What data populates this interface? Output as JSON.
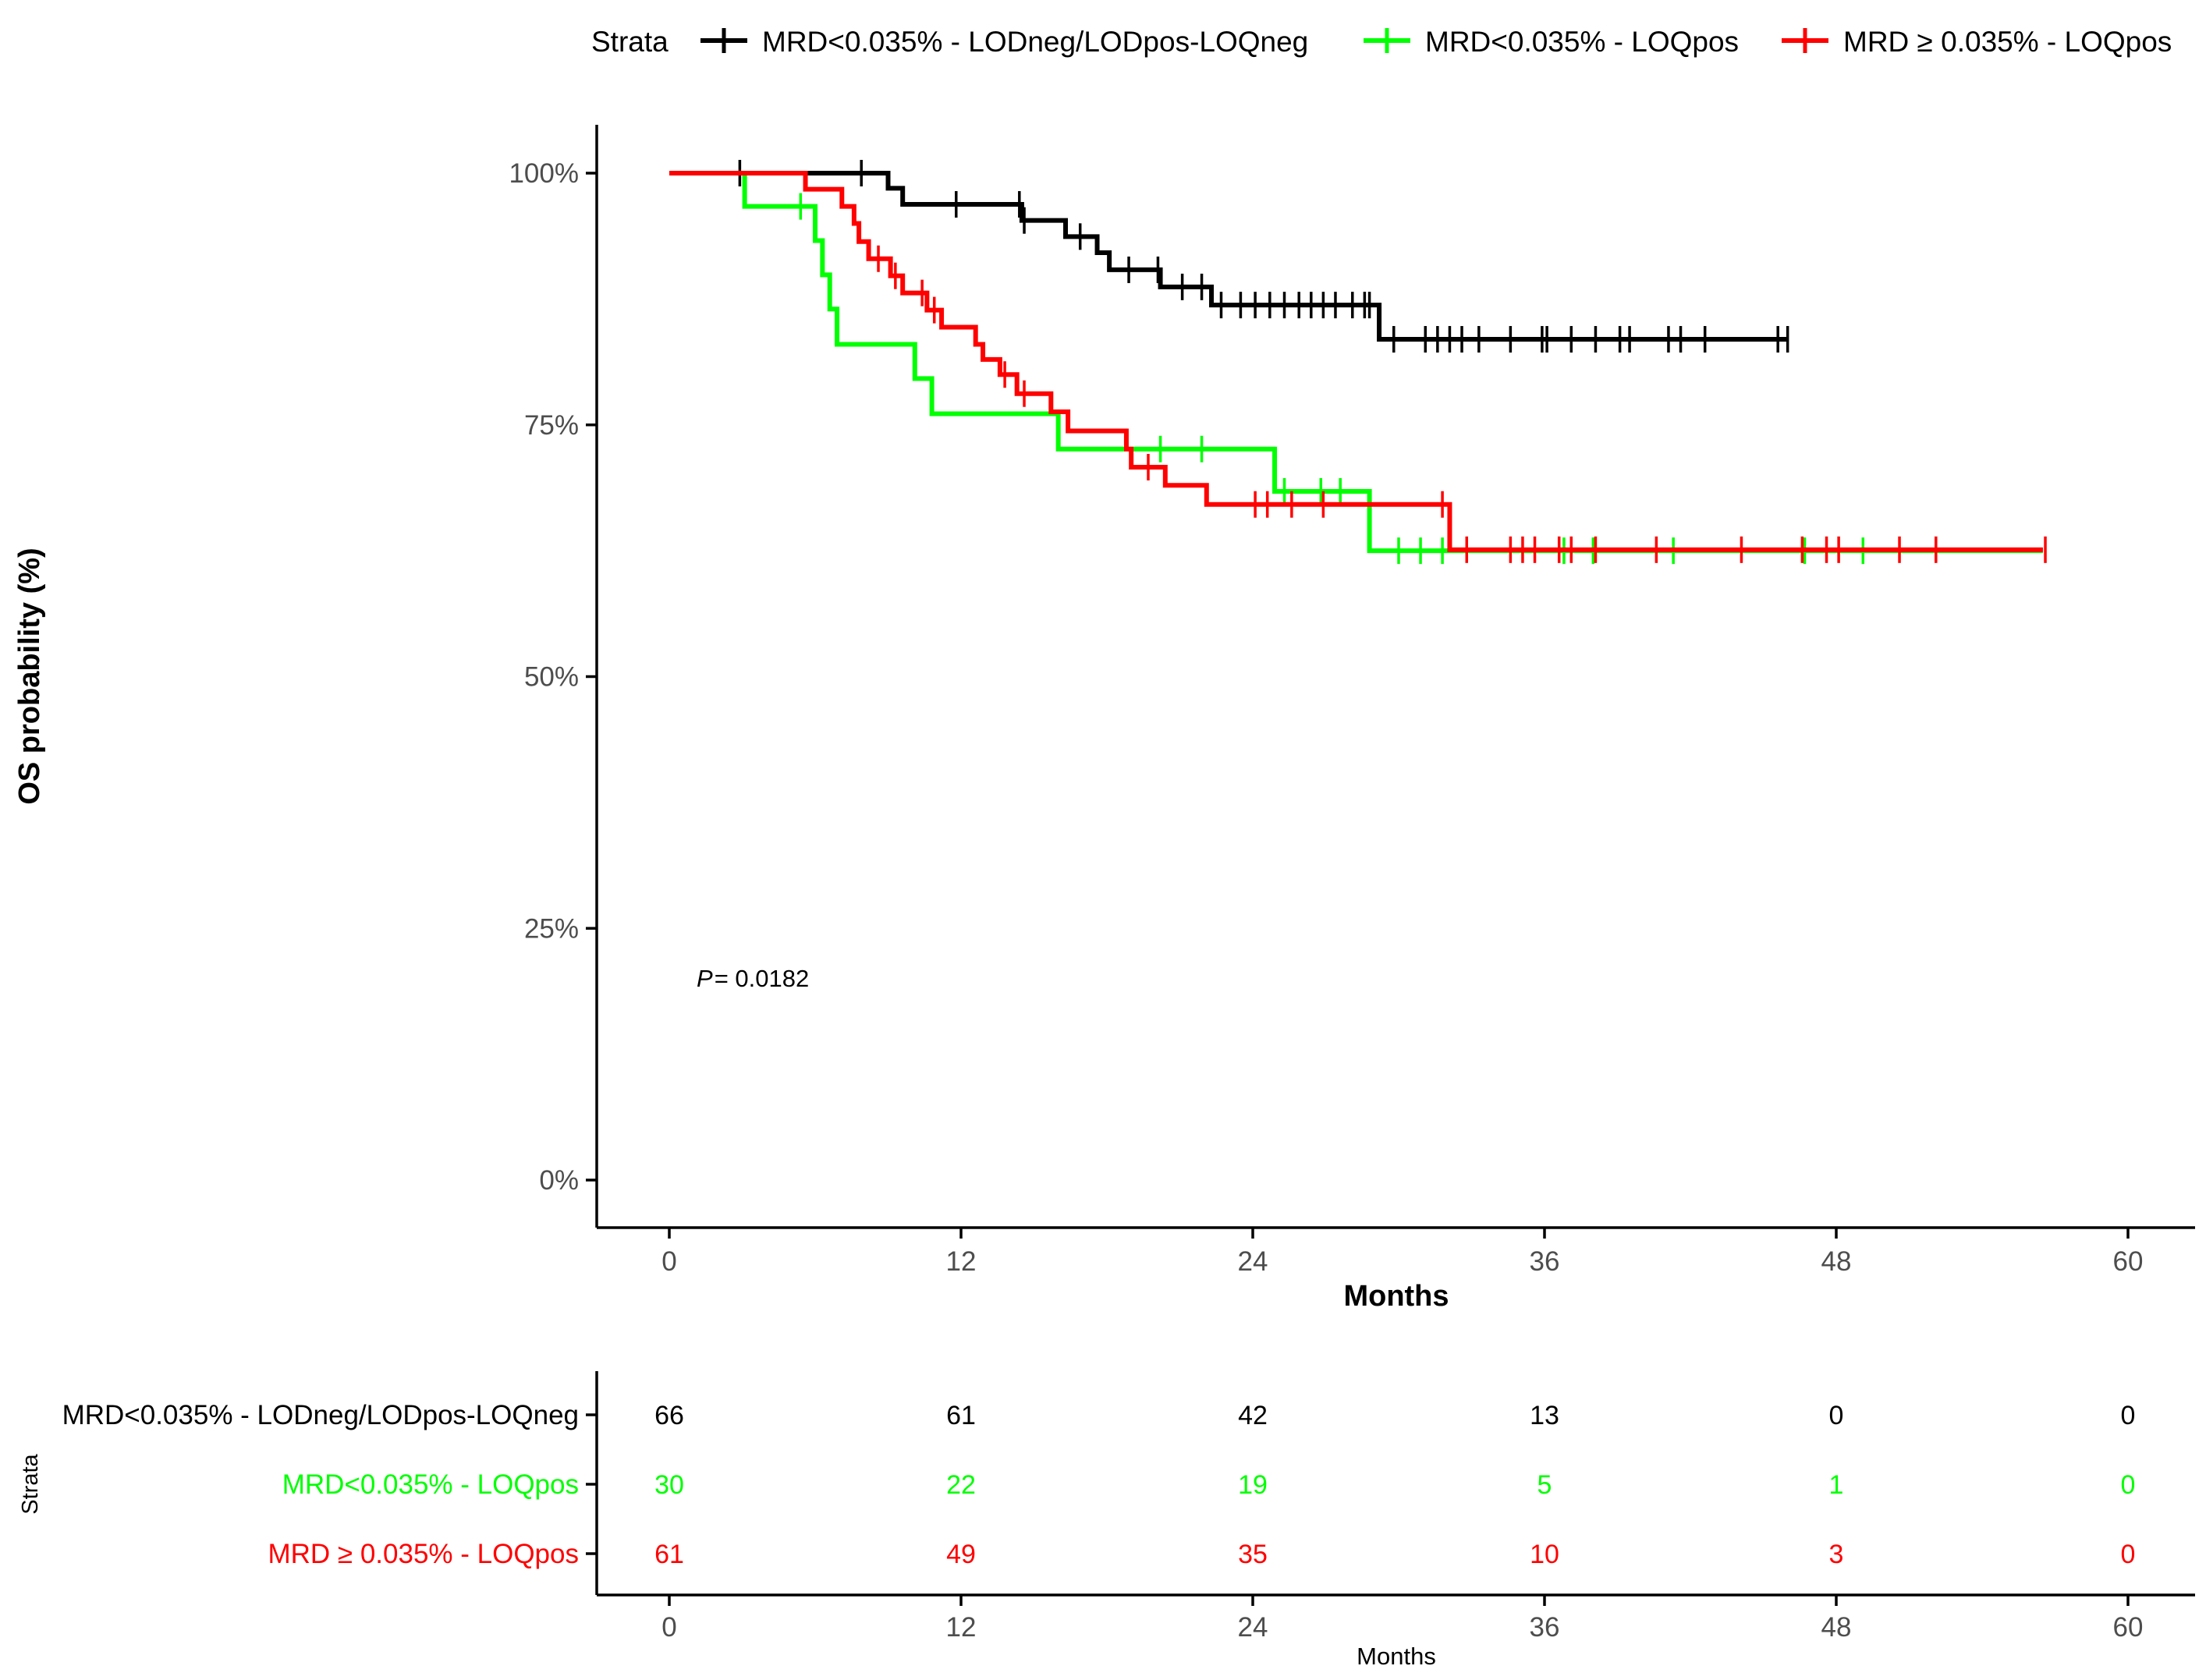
{
  "legend": {
    "title": "Strata",
    "entries": [
      {
        "label": "MRD<0.035% - LODneg/LODpos-LOQneg",
        "color": "#000000"
      },
      {
        "label": "MRD<0.035% - LOQpos",
        "color": "#00ff00"
      },
      {
        "label": "MRD ≥ 0.035% - LOQpos",
        "color": "#ff0000"
      }
    ]
  },
  "annotation": {
    "p_label": "P",
    "p_value": "= 0.0182"
  },
  "chart_data": {
    "type": "line",
    "subtype": "kaplan-meier step",
    "xlabel": "Months",
    "ylabel": "OS probability (%)",
    "xlim": [
      -3,
      63
    ],
    "ylim": [
      -5,
      105
    ],
    "x_ticks": [
      0,
      12,
      24,
      36,
      48,
      60
    ],
    "x_tick_labels": [
      "0",
      "12",
      "24",
      "36",
      "48",
      "60"
    ],
    "y_ticks": [
      0,
      25,
      50,
      75,
      100
    ],
    "y_tick_labels": [
      "0%",
      "25%",
      "50%",
      "75%",
      "100%"
    ],
    "series": [
      {
        "name": "MRD<0.035% - LODneg/LODpos-LOQneg",
        "color": "#000000",
        "steps": [
          [
            0,
            100
          ],
          [
            9.0,
            98.5
          ],
          [
            9.6,
            96.9
          ],
          [
            14.5,
            95.3
          ],
          [
            16.3,
            93.7
          ],
          [
            17.6,
            92.1
          ],
          [
            18.1,
            90.4
          ],
          [
            20.2,
            88.7
          ],
          [
            22.3,
            86.9
          ],
          [
            29.2,
            83.5
          ],
          [
            46.0,
            83.5
          ]
        ],
        "censor_times": [
          2.9,
          7.9,
          11.8,
          14.4,
          14.6,
          16.9,
          18.9,
          20.1,
          21.1,
          21.9,
          22.7,
          23.5,
          24.1,
          24.7,
          25.3,
          25.9,
          26.4,
          26.9,
          27.4,
          28.1,
          28.6,
          28.8,
          29.8,
          31.1,
          31.6,
          32.1,
          32.6,
          33.3,
          34.6,
          35.9,
          36.1,
          37.1,
          38.1,
          39.1,
          39.5,
          41.1,
          41.6,
          42.6,
          45.6,
          46.0
        ]
      },
      {
        "name": "MRD<0.035% - LOQpos",
        "color": "#00ff00",
        "steps": [
          [
            0,
            100
          ],
          [
            3.1,
            96.7
          ],
          [
            6.0,
            93.3
          ],
          [
            6.3,
            89.9
          ],
          [
            6.6,
            86.5
          ],
          [
            6.9,
            83.0
          ],
          [
            10.1,
            79.6
          ],
          [
            10.8,
            76.1
          ],
          [
            16.0,
            72.6
          ],
          [
            24.9,
            68.4
          ],
          [
            28.8,
            62.5
          ],
          [
            56.5,
            62.5
          ]
        ],
        "censor_times": [
          5.4,
          20.2,
          21.9,
          25.3,
          26.8,
          27.6,
          30.0,
          30.9,
          31.8,
          36.8,
          38.0,
          41.3,
          46.7,
          49.1
        ]
      },
      {
        "name": "MRD ≥ 0.035% - LOQpos",
        "color": "#ff0000",
        "steps": [
          [
            0,
            100
          ],
          [
            5.6,
            98.4
          ],
          [
            7.1,
            96.7
          ],
          [
            7.6,
            95.0
          ],
          [
            7.8,
            93.2
          ],
          [
            8.2,
            91.5
          ],
          [
            9.1,
            89.8
          ],
          [
            9.6,
            88.1
          ],
          [
            10.6,
            86.4
          ],
          [
            11.2,
            84.7
          ],
          [
            12.6,
            83.0
          ],
          [
            12.9,
            81.5
          ],
          [
            13.6,
            80.0
          ],
          [
            14.3,
            78.1
          ],
          [
            15.7,
            76.3
          ],
          [
            16.4,
            74.4
          ],
          [
            18.8,
            72.6
          ],
          [
            19.0,
            70.8
          ],
          [
            20.4,
            69.0
          ],
          [
            22.1,
            67.1
          ],
          [
            32.1,
            62.6
          ],
          [
            56.5,
            62.6
          ]
        ],
        "censor_times": [
          8.6,
          9.3,
          10.4,
          10.9,
          13.8,
          14.6,
          19.7,
          24.1,
          24.6,
          25.6,
          26.9,
          31.8,
          32.8,
          34.6,
          35.1,
          35.6,
          36.6,
          37.1,
          38.1,
          40.6,
          44.1,
          46.6,
          47.6,
          48.1,
          50.6,
          52.1,
          56.6
        ]
      }
    ]
  },
  "risk_table": {
    "y_title": "Strata",
    "x_title": "Months",
    "times": [
      "0",
      "12",
      "24",
      "36",
      "48",
      "60"
    ],
    "rows": [
      {
        "label": "MRD<0.035% - LODneg/LODpos-LOQneg",
        "color": "#000000",
        "counts": [
          "66",
          "61",
          "42",
          "13",
          "0",
          "0"
        ]
      },
      {
        "label": "MRD<0.035% - LOQpos",
        "color": "#00ff00",
        "counts": [
          "30",
          "22",
          "19",
          "5",
          "1",
          "0"
        ]
      },
      {
        "label": "MRD ≥ 0.035% - LOQpos",
        "color": "#ff0000",
        "counts": [
          "61",
          "49",
          "35",
          "10",
          "3",
          "0"
        ]
      }
    ]
  }
}
